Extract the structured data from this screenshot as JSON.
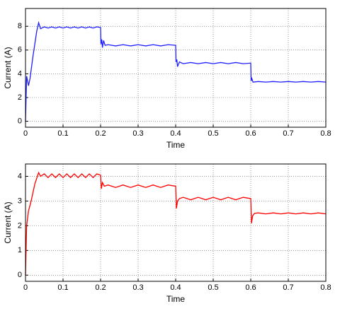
{
  "chart_data": [
    {
      "type": "line",
      "xlabel": "Time",
      "ylabel": "Current (A)",
      "grid": true,
      "xlim": [
        0,
        0.8
      ],
      "xticks": [
        0,
        0.1,
        0.2,
        0.3,
        0.4,
        0.5,
        0.6,
        0.7,
        0.8
      ],
      "ylim": [
        -0.5,
        9.5
      ],
      "yticks": [
        0,
        2,
        4,
        6,
        8
      ],
      "x": [
        0,
        0.003,
        0.008,
        0.012,
        0.02,
        0.03,
        0.035,
        0.04,
        0.05,
        0.06,
        0.07,
        0.08,
        0.09,
        0.1,
        0.11,
        0.12,
        0.13,
        0.14,
        0.15,
        0.16,
        0.17,
        0.18,
        0.19,
        0.2,
        0.201,
        0.203,
        0.205,
        0.208,
        0.212,
        0.22,
        0.24,
        0.26,
        0.28,
        0.3,
        0.32,
        0.34,
        0.36,
        0.38,
        0.4,
        0.401,
        0.403,
        0.405,
        0.41,
        0.42,
        0.44,
        0.46,
        0.48,
        0.5,
        0.52,
        0.54,
        0.56,
        0.58,
        0.6,
        0.601,
        0.603,
        0.606,
        0.62,
        0.64,
        0.66,
        0.68,
        0.7,
        0.72,
        0.74,
        0.76,
        0.78,
        0.8
      ],
      "series": [
        {
          "color": "#1f1fff",
          "values": [
            0,
            3.8,
            3.0,
            3.6,
            5.5,
            7.6,
            8.3,
            7.8,
            7.95,
            7.85,
            7.95,
            7.85,
            7.95,
            7.85,
            7.95,
            7.85,
            7.95,
            7.85,
            7.95,
            7.85,
            7.95,
            7.85,
            7.95,
            7.9,
            6.5,
            6.9,
            6.2,
            6.8,
            6.4,
            6.45,
            6.35,
            6.45,
            6.35,
            6.45,
            6.35,
            6.45,
            6.35,
            6.45,
            6.4,
            5.0,
            5.2,
            4.6,
            5.0,
            4.85,
            4.95,
            4.85,
            4.95,
            4.85,
            4.95,
            4.85,
            4.95,
            4.85,
            4.9,
            3.4,
            3.6,
            3.3,
            3.35,
            3.3,
            3.35,
            3.3,
            3.35,
            3.3,
            3.35,
            3.3,
            3.35,
            3.3
          ]
        }
      ]
    },
    {
      "type": "line",
      "xlabel": "Time",
      "ylabel": "Current (A)",
      "grid": true,
      "xlim": [
        0,
        0.8
      ],
      "xticks": [
        0,
        0.1,
        0.2,
        0.3,
        0.4,
        0.5,
        0.6,
        0.7,
        0.8
      ],
      "ylim": [
        -0.25,
        4.5
      ],
      "yticks": [
        0,
        1,
        2,
        3,
        4
      ],
      "x": [
        0,
        0.003,
        0.008,
        0.015,
        0.025,
        0.035,
        0.04,
        0.05,
        0.06,
        0.07,
        0.08,
        0.09,
        0.1,
        0.11,
        0.12,
        0.13,
        0.14,
        0.15,
        0.16,
        0.17,
        0.18,
        0.19,
        0.2,
        0.202,
        0.205,
        0.21,
        0.22,
        0.24,
        0.26,
        0.28,
        0.3,
        0.32,
        0.34,
        0.36,
        0.38,
        0.4,
        0.402,
        0.405,
        0.41,
        0.42,
        0.44,
        0.46,
        0.48,
        0.5,
        0.52,
        0.54,
        0.56,
        0.58,
        0.6,
        0.602,
        0.605,
        0.61,
        0.62,
        0.64,
        0.66,
        0.68,
        0.7,
        0.72,
        0.74,
        0.76,
        0.78,
        0.8
      ],
      "series": [
        {
          "color": "#ff0000",
          "values": [
            0,
            2.0,
            2.6,
            3.0,
            3.7,
            4.15,
            4.0,
            4.1,
            3.95,
            4.1,
            3.95,
            4.1,
            3.95,
            4.1,
            3.95,
            4.1,
            3.95,
            4.1,
            3.95,
            4.1,
            3.95,
            4.1,
            4.05,
            3.5,
            3.75,
            3.6,
            3.65,
            3.55,
            3.65,
            3.55,
            3.65,
            3.55,
            3.65,
            3.55,
            3.65,
            3.6,
            2.7,
            3.0,
            3.1,
            3.15,
            3.05,
            3.15,
            3.05,
            3.15,
            3.05,
            3.15,
            3.05,
            3.15,
            3.1,
            2.1,
            2.4,
            2.5,
            2.52,
            2.48,
            2.52,
            2.48,
            2.52,
            2.48,
            2.52,
            2.48,
            2.52,
            2.48
          ]
        }
      ]
    }
  ]
}
